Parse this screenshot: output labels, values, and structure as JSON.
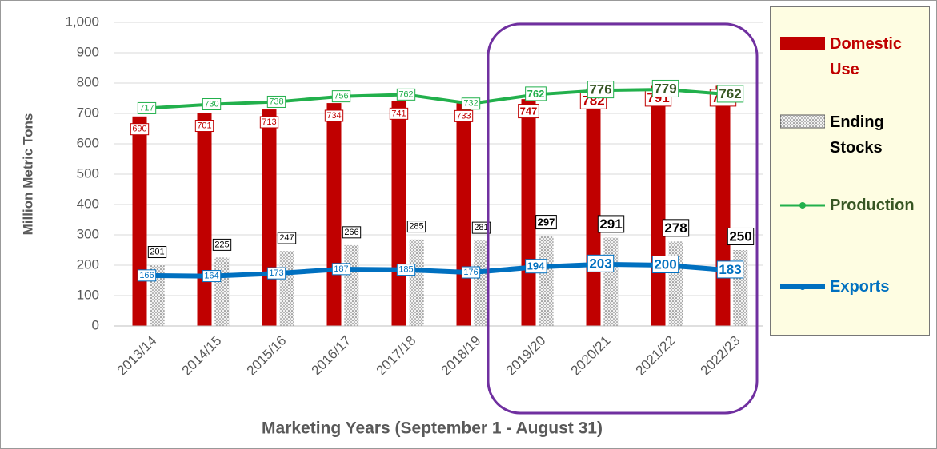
{
  "chart_data": {
    "type": "bar",
    "categories": [
      "2013/14",
      "2014/15",
      "2015/16",
      "2016/17",
      "2017/18",
      "2018/19",
      "2019/20",
      "2020/21",
      "2021/22",
      "2022/23"
    ],
    "series": [
      {
        "name": "Domestic Use",
        "type": "bar",
        "color": "#c00000",
        "values": [
          690,
          701,
          713,
          734,
          741,
          733,
          747,
          782,
          791,
          791
        ]
      },
      {
        "name": "Ending Stocks",
        "type": "bar",
        "color": "#d9d9d9",
        "values": [
          201,
          225,
          247,
          266,
          285,
          281,
          297,
          291,
          278,
          250
        ]
      },
      {
        "name": "Production",
        "type": "line",
        "color": "#22b04c",
        "values": [
          717,
          730,
          738,
          756,
          762,
          732,
          762,
          776,
          779,
          762
        ]
      },
      {
        "name": "Exports",
        "type": "line",
        "color": "#0070c0",
        "values": [
          166,
          164,
          173,
          187,
          185,
          176,
          194,
          203,
          200,
          183
        ]
      }
    ],
    "ylim": [
      0,
      1000
    ],
    "yticks": [
      0,
      100,
      200,
      300,
      400,
      500,
      600,
      700,
      800,
      900,
      {
        "value": 1000,
        "label": "1,000"
      }
    ],
    "y_label": "Million Metric Tons",
    "x_label": "Marketing Years (September 1 - August 31)",
    "grid": true,
    "legend": "right"
  }
}
